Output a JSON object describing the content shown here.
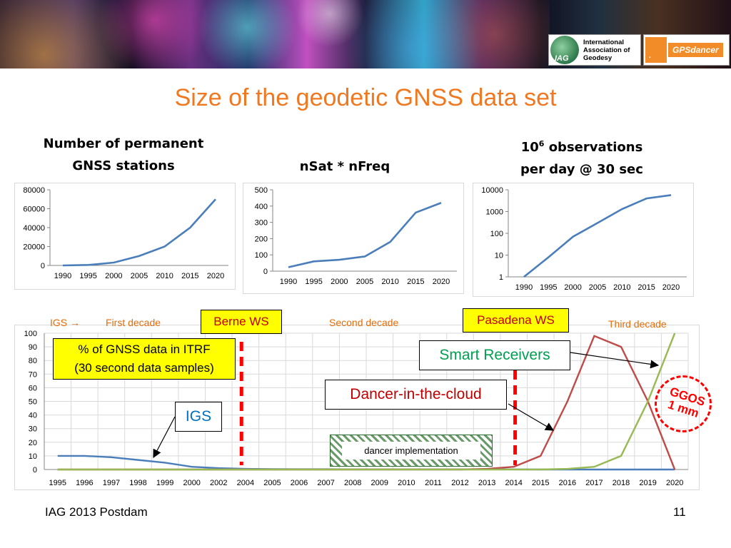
{
  "slide": {
    "title": "Size of the geodetic GNSS data set",
    "footer_left": "IAG 2013 Postdam",
    "page_number": "11",
    "logos": {
      "iag_line1": "International",
      "iag_line2": "Association of",
      "iag_line3": "Geodesy",
      "iag_mark": "IAG",
      "gps_name": "GPSdancer"
    }
  },
  "chart_titles": {
    "stations_line1": "Number of permanent",
    "stations_line2": "GNSS stations",
    "nsat": "nSat * nFreq",
    "obs_base": "10",
    "obs_exp": "6",
    "obs_line1_rest": " observations",
    "obs_line2": "per day @ 30 sec"
  },
  "annotations": {
    "igs_arrow": "IGS →",
    "first_decade": "First decade",
    "berne": "Berne WS",
    "second_decade": "Second decade",
    "pasadena": "Pasadena WS",
    "third_decade": "Third decade",
    "itrf_line1": "% of GNSS data in ITRF",
    "itrf_line2": "(30 second data samples)",
    "smart": "Smart Receivers",
    "dancer_cloud": "Dancer-in-the-cloud",
    "igs": "IGS",
    "dancer_impl": "dancer implementation",
    "ggos_line1": "GGOS",
    "ggos_line2": "1 mm"
  },
  "colors": {
    "title": "#f07820",
    "line_blue": "#4a7ebb",
    "line_red": "#be4b48",
    "line_green": "#98b954",
    "decade_orange": "#e46c0a",
    "dash_red": "#ff0000",
    "smart_green": "#00a050",
    "cloud_red": "#c00000",
    "igs_blue": "#0070c0",
    "note_yellow": "#ffff00"
  },
  "chart_data": [
    {
      "type": "line",
      "title": "Number of permanent GNSS stations",
      "x": [
        1990,
        1995,
        2000,
        2005,
        2010,
        2015,
        2020
      ],
      "yticks": [
        0,
        20000,
        40000,
        60000,
        80000
      ],
      "ylim": [
        0,
        80000
      ],
      "series": [
        {
          "values": [
            0,
            500,
            3000,
            10000,
            20000,
            40000,
            70000
          ]
        }
      ]
    },
    {
      "type": "line",
      "title": "nSat * nFreq",
      "x": [
        1990,
        1995,
        2000,
        2005,
        2010,
        2015,
        2020
      ],
      "yticks": [
        0,
        100,
        200,
        300,
        400,
        500
      ],
      "ylim": [
        0,
        500
      ],
      "series": [
        {
          "values": [
            24,
            60,
            70,
            90,
            180,
            360,
            420
          ]
        }
      ]
    },
    {
      "type": "line",
      "title": "10^6 observations per day @ 30 sec",
      "x": [
        1990,
        1995,
        2000,
        2005,
        2010,
        2015,
        2020
      ],
      "yscale": "log",
      "yticks": [
        1,
        10,
        100,
        1000,
        10000
      ],
      "ylim": [
        1,
        10000
      ],
      "series": [
        {
          "values": [
            1,
            8,
            70,
            300,
            1300,
            4000,
            5700
          ]
        }
      ]
    },
    {
      "type": "line",
      "title": "% of GNSS data in ITRF (30 second data samples)",
      "categories": [
        "1995",
        "1996",
        "1997",
        "1998",
        "1999",
        "2000",
        "2002",
        "2004",
        "2005",
        "2006",
        "2007",
        "2008",
        "2009",
        "2010",
        "2011",
        "2012",
        "2013",
        "2014",
        "2015",
        "2016",
        "2017",
        "2018",
        "2019",
        "2020"
      ],
      "yticks": [
        0,
        10,
        20,
        30,
        40,
        50,
        60,
        70,
        80,
        90,
        100
      ],
      "ylim": [
        0,
        100
      ],
      "grid": true,
      "series": [
        {
          "values": [
            10,
            10,
            9,
            7,
            5,
            2,
            1,
            0.5,
            0.3,
            0.2,
            0.2,
            0.1,
            0.1,
            0.1,
            0.1,
            0.1,
            0.1,
            0.1,
            0,
            0,
            0,
            0,
            0,
            0
          ]
        },
        {
          "values": [
            0,
            0,
            0,
            0,
            0,
            0,
            0,
            0,
            0,
            0,
            0,
            0,
            0,
            0,
            0,
            0,
            0.5,
            2,
            10,
            50,
            98,
            90,
            50,
            0
          ]
        },
        {
          "values": [
            0,
            0,
            0,
            0,
            0,
            0,
            0,
            0,
            0,
            0,
            0,
            0,
            0,
            0,
            0,
            0,
            0,
            0,
            0,
            0.5,
            2,
            10,
            50,
            100
          ]
        }
      ]
    }
  ]
}
